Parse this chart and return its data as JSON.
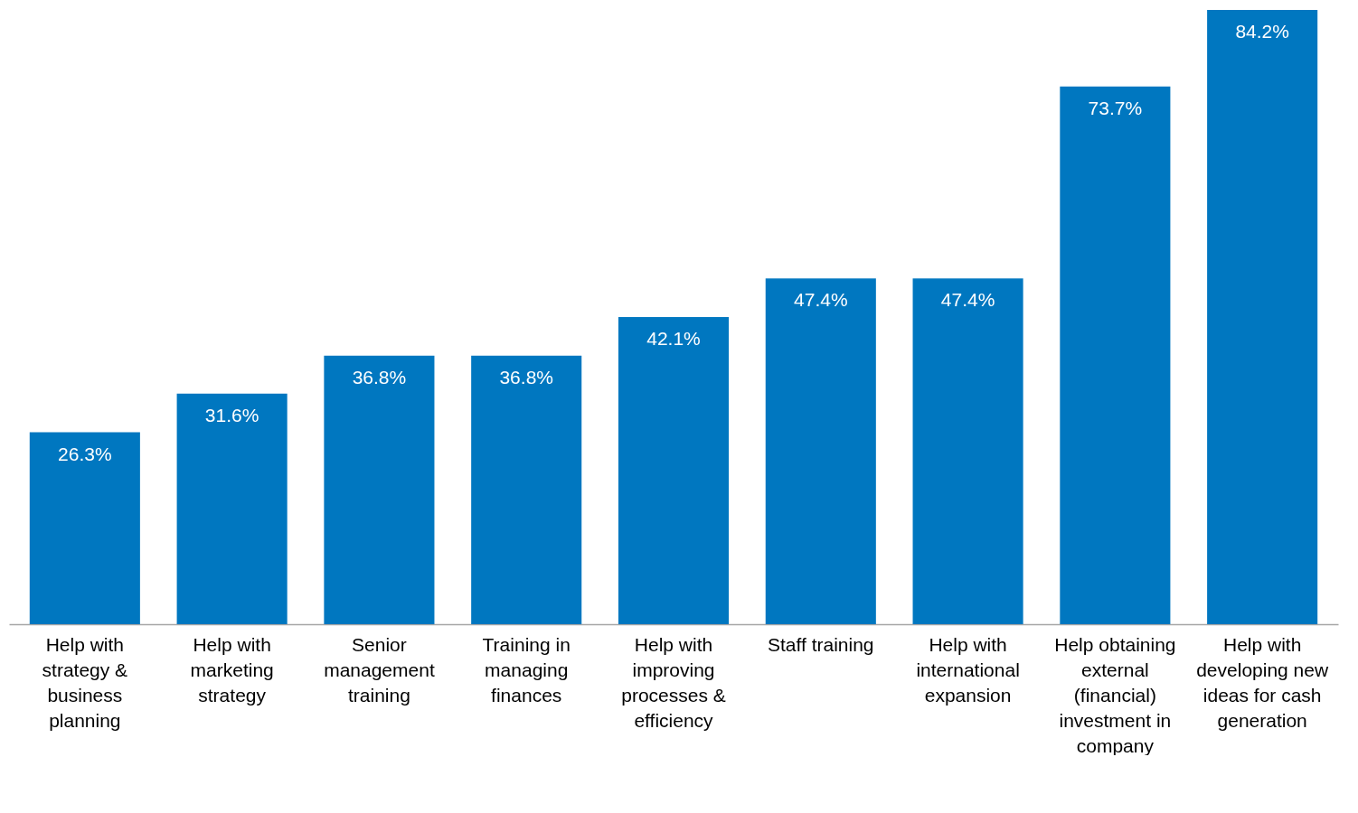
{
  "chart_data": {
    "type": "bar",
    "categories": [
      "Help with strategy & business planning",
      "Help with marketing strategy",
      "Senior management training",
      "Training in managing finances",
      "Help with improving processes & efficiency",
      "Staff training",
      "Help with international expansion",
      "Help obtaining external (financial) investment in company",
      "Help with developing new ideas for cash generation"
    ],
    "values": [
      26.3,
      31.6,
      36.8,
      36.8,
      42.1,
      47.4,
      47.4,
      73.7,
      84.2
    ],
    "value_labels": [
      "26.3%",
      "31.6%",
      "36.8%",
      "36.8%",
      "42.1%",
      "47.4%",
      "47.4%",
      "73.7%",
      "84.2%"
    ],
    "color": "#0077c0"
  }
}
